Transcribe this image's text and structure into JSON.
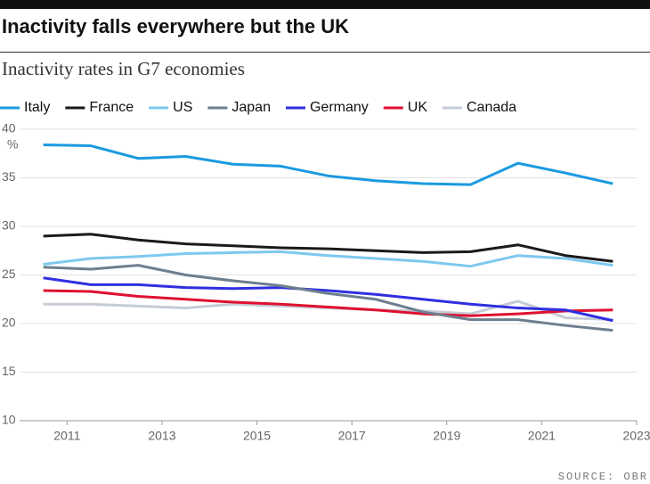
{
  "chart_data": {
    "type": "line",
    "title": "Inactivity falls everywhere but the UK",
    "subtitle": "Inactivity rates in G7 economies",
    "y_label": "%",
    "source": "SOURCE: OBR",
    "x": [
      2010.5,
      2011.5,
      2012.5,
      2013.5,
      2014.5,
      2015.5,
      2016.5,
      2017.5,
      2018.5,
      2019.5,
      2020.5,
      2021.5,
      2022.5
    ],
    "xlim": [
      2010,
      2023
    ],
    "xticks": [
      2011,
      2013,
      2015,
      2017,
      2019,
      2021,
      2023
    ],
    "ylim": [
      10,
      40
    ],
    "yticks": [
      10,
      15,
      20,
      25,
      30,
      35,
      40
    ],
    "grid": true,
    "series": [
      {
        "name": "Italy",
        "color": "#1a9ae0",
        "values": [
          38.4,
          38.3,
          37.0,
          37.2,
          36.4,
          36.2,
          35.2,
          34.7,
          34.4,
          34.3,
          36.5,
          35.5,
          34.4
        ]
      },
      {
        "name": "France",
        "color": "#1a1a1a",
        "values": [
          29.0,
          29.2,
          28.6,
          28.2,
          28.0,
          27.8,
          27.7,
          27.5,
          27.3,
          27.4,
          28.1,
          27.0,
          26.4
        ]
      },
      {
        "name": "US",
        "color": "#7dc8f0",
        "values": [
          26.1,
          26.7,
          26.9,
          27.2,
          27.3,
          27.4,
          27.0,
          26.7,
          26.4,
          25.9,
          27.0,
          26.7,
          26.0
        ]
      },
      {
        "name": "Japan",
        "color": "#6e7f8e",
        "values": [
          25.8,
          25.6,
          26.0,
          25.0,
          24.4,
          23.9,
          23.1,
          22.5,
          21.2,
          20.4,
          20.4,
          19.8,
          19.3
        ]
      },
      {
        "name": "Germany",
        "color": "#2f2fe0",
        "values": [
          24.7,
          24.0,
          24.0,
          23.7,
          23.6,
          23.7,
          23.4,
          23.0,
          22.5,
          22.0,
          21.6,
          21.4,
          20.3
        ]
      },
      {
        "name": "UK",
        "color": "#e0102f",
        "values": [
          23.4,
          23.3,
          22.8,
          22.5,
          22.2,
          22.0,
          21.7,
          21.4,
          21.0,
          20.8,
          21.0,
          21.3,
          21.4
        ]
      },
      {
        "name": "Canada",
        "color": "#c5ccd6",
        "values": [
          22.0,
          22.0,
          21.8,
          21.6,
          22.0,
          21.8,
          21.6,
          21.4,
          21.3,
          21.0,
          22.3,
          20.6,
          20.4
        ]
      }
    ]
  }
}
